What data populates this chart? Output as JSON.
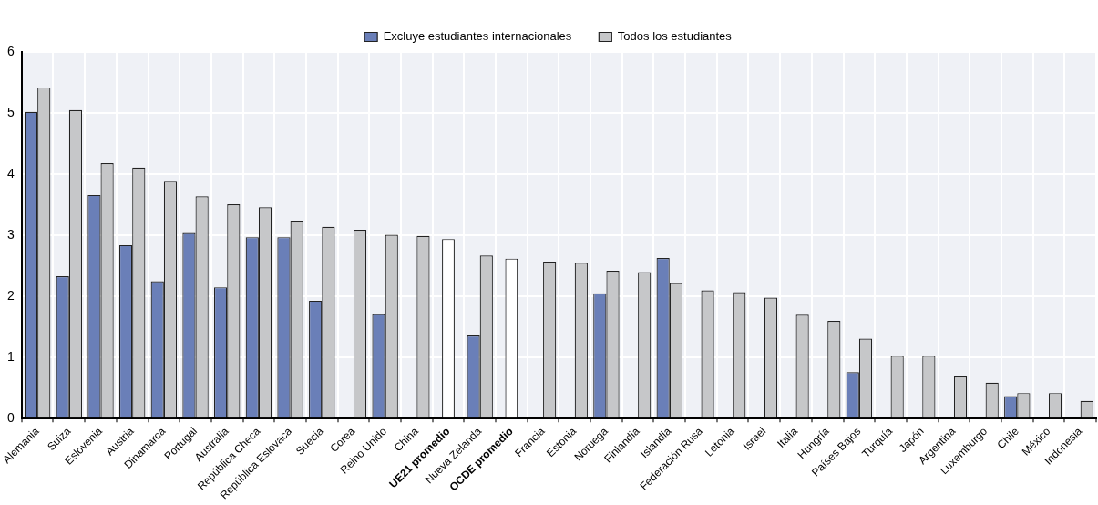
{
  "chart_data": {
    "type": "bar",
    "categories": [
      "Alemania",
      "Suiza",
      "Eslovenia",
      "Austria",
      "Dinamarca",
      "Portugal",
      "Australia",
      "República Checa",
      "República Eslovaca",
      "Suecia",
      "Corea",
      "Reino Unido",
      "China",
      "UE21 promedio",
      "Nueva Zelanda",
      "OCDE promedio",
      "Francia",
      "Estonia",
      "Noruega",
      "Finlandia",
      "Islandia",
      "Federación Rusa",
      "Letonia",
      "Israel",
      "Italia",
      "Hungría",
      "Países Bajos",
      "Turquía",
      "Japón",
      "Argentina",
      "Luxemburgo",
      "Chile",
      "México",
      "Indonesia"
    ],
    "series": [
      {
        "name": "Excluye estudiantes internacionales",
        "color": "#6a7fb8",
        "values": [
          5.02,
          2.33,
          3.66,
          2.84,
          2.25,
          3.04,
          2.15,
          2.97,
          2.97,
          1.93,
          null,
          1.71,
          null,
          null,
          1.36,
          null,
          null,
          null,
          2.05,
          null,
          2.63,
          null,
          null,
          null,
          null,
          null,
          0.76,
          null,
          null,
          null,
          null,
          0.37,
          null,
          null
        ]
      },
      {
        "name": "Todos los estudiantes",
        "color": "#c6c7c9",
        "values": [
          5.42,
          5.05,
          4.18,
          4.11,
          3.88,
          3.64,
          3.51,
          3.46,
          3.24,
          3.14,
          3.09,
          3.01,
          2.99,
          null,
          2.67,
          null,
          2.57,
          2.55,
          2.42,
          2.4,
          2.22,
          2.1,
          2.07,
          1.98,
          1.7,
          1.6,
          1.31,
          1.03,
          1.03,
          0.69,
          0.59,
          0.42,
          0.42,
          0.29
        ]
      },
      {
        "color": "#ffffff",
        "values": [
          null,
          null,
          null,
          null,
          null,
          null,
          null,
          null,
          null,
          null,
          null,
          null,
          null,
          2.94,
          null,
          2.62,
          null,
          null,
          null,
          null,
          null,
          null,
          null,
          null,
          null,
          null,
          null,
          null,
          null,
          null,
          null,
          null,
          null,
          null
        ]
      }
    ],
    "ylim": [
      0,
      6
    ],
    "yticks": [
      0,
      1,
      2,
      3,
      4,
      5,
      6
    ],
    "grid": true,
    "legend": "top"
  }
}
